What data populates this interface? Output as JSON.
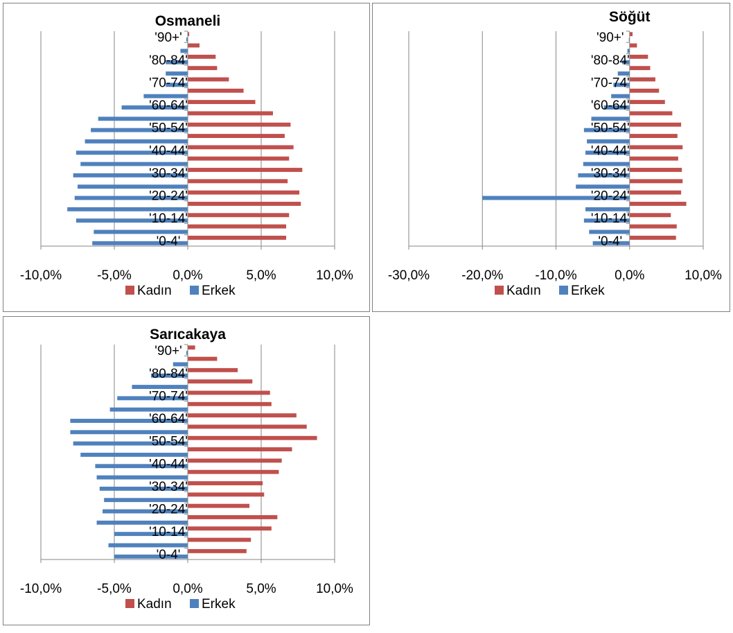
{
  "colors": {
    "kadin": "#c0504d",
    "erkek": "#4f81bd",
    "grid": "#868686",
    "axis": "#868686",
    "text": "#000000"
  },
  "legend": {
    "kadin": "Kadın",
    "erkek": "Erkek"
  },
  "chart_data": [
    {
      "type": "bar",
      "title": "Osmaneli",
      "orientation": "horizontal",
      "legend_position": "bottom",
      "grid": true,
      "xlim": [
        -0.1,
        0.1
      ],
      "x_ticks": [
        "-10,0%",
        "-5,0%",
        "0,0%",
        "5,0%",
        "10,0%"
      ],
      "x_tick_values": [
        -0.1,
        -0.05,
        0.0,
        0.05,
        0.1
      ],
      "categories": [
        "'0-4'",
        "'5-9'",
        "'10-14'",
        "'15-19'",
        "'20-24'",
        "'25-29'",
        "'30-34'",
        "'35-39'",
        "'40-44'",
        "'45-49'",
        "'50-54'",
        "'55-59'",
        "'60-64'",
        "'65-69'",
        "'70-74'",
        "'75-79'",
        "'80-84'",
        "'85-89'",
        "'90+'"
      ],
      "visible_category_labels": [
        "'0-4'",
        "'10-14'",
        "'20-24'",
        "'30-34'",
        "'40-44'",
        "'50-54'",
        "'60-64'",
        "'70-74'",
        "'80-84'",
        "'90+'"
      ],
      "series": [
        {
          "name": "Kadın",
          "values": [
            0.067,
            0.067,
            0.069,
            0.077,
            0.076,
            0.068,
            0.078,
            0.069,
            0.072,
            0.066,
            0.07,
            0.058,
            0.046,
            0.038,
            0.028,
            0.02,
            0.019,
            0.008,
            0.001
          ]
        },
        {
          "name": "Erkek",
          "values": [
            -0.065,
            -0.064,
            -0.076,
            -0.082,
            -0.077,
            -0.075,
            -0.078,
            -0.073,
            -0.076,
            -0.07,
            -0.066,
            -0.061,
            -0.045,
            -0.03,
            -0.015,
            -0.015,
            -0.015,
            -0.005,
            -0.001
          ]
        }
      ]
    },
    {
      "type": "bar",
      "title": "Söğüt",
      "orientation": "horizontal",
      "legend_position": "bottom",
      "grid": true,
      "xlim": [
        -0.3,
        0.1
      ],
      "x_ticks": [
        "-30,0%",
        "-20,0%",
        "-10,0%",
        "0,0%",
        "10,0%"
      ],
      "x_tick_values": [
        -0.3,
        -0.2,
        -0.1,
        0.0,
        0.1
      ],
      "categories": [
        "'0-4'",
        "'5-9'",
        "'10-14'",
        "'15-19'",
        "'20-24'",
        "'25-29'",
        "'30-34'",
        "'35-39'",
        "'40-44'",
        "'45-49'",
        "'50-54'",
        "'55-59'",
        "'60-64'",
        "'65-69'",
        "'70-74'",
        "'75-79'",
        "'80-84'",
        "'85-89'",
        "'90+'"
      ],
      "visible_category_labels": [
        "'0-4'",
        "'10-14'",
        "'20-24'",
        "'30-34'",
        "'40-44'",
        "'50-54'",
        "'60-64'",
        "'70-74'",
        "'80-84'",
        "'90+'"
      ],
      "series": [
        {
          "name": "Kadın",
          "values": [
            0.063,
            0.064,
            0.056,
            0.077,
            0.07,
            0.072,
            0.071,
            0.066,
            0.072,
            0.065,
            0.07,
            0.058,
            0.048,
            0.04,
            0.035,
            0.028,
            0.025,
            0.01,
            0.004
          ]
        },
        {
          "name": "Erkek",
          "values": [
            -0.05,
            -0.055,
            -0.062,
            -0.06,
            -0.2,
            -0.073,
            -0.07,
            -0.063,
            -0.06,
            -0.058,
            -0.062,
            -0.052,
            -0.035,
            -0.025,
            -0.022,
            -0.016,
            -0.01,
            -0.003,
            -0.001
          ]
        }
      ]
    },
    {
      "type": "bar",
      "title": "Sarıcakaya",
      "orientation": "horizontal",
      "legend_position": "bottom",
      "grid": true,
      "xlim": [
        -0.1,
        0.1
      ],
      "x_ticks": [
        "-10,0%",
        "-5,0%",
        "0,0%",
        "5,0%",
        "10,0%"
      ],
      "x_tick_values": [
        -0.1,
        -0.05,
        0.0,
        0.05,
        0.1
      ],
      "categories": [
        "'0-4'",
        "'5-9'",
        "'10-14'",
        "'15-19'",
        "'20-24'",
        "'25-29'",
        "'30-34'",
        "'35-39'",
        "'40-44'",
        "'45-49'",
        "'50-54'",
        "'55-59'",
        "'60-64'",
        "'65-69'",
        "'70-74'",
        "'75-79'",
        "'80-84'",
        "'85-89'",
        "'90+'"
      ],
      "visible_category_labels": [
        "'0-4'",
        "'10-14'",
        "'20-24'",
        "'30-34'",
        "'40-44'",
        "'50-54'",
        "'60-64'",
        "'70-74'",
        "'80-84'",
        "'90+'"
      ],
      "series": [
        {
          "name": "Kadın",
          "values": [
            0.04,
            0.043,
            0.057,
            0.061,
            0.042,
            0.052,
            0.051,
            0.062,
            0.064,
            0.071,
            0.088,
            0.081,
            0.074,
            0.057,
            0.056,
            0.044,
            0.034,
            0.02,
            0.005
          ]
        },
        {
          "name": "Erkek",
          "values": [
            -0.05,
            -0.054,
            -0.05,
            -0.062,
            -0.058,
            -0.057,
            -0.06,
            -0.062,
            -0.063,
            -0.073,
            -0.078,
            -0.08,
            -0.08,
            -0.053,
            -0.048,
            -0.038,
            -0.025,
            -0.01,
            -0.001
          ]
        }
      ]
    }
  ]
}
